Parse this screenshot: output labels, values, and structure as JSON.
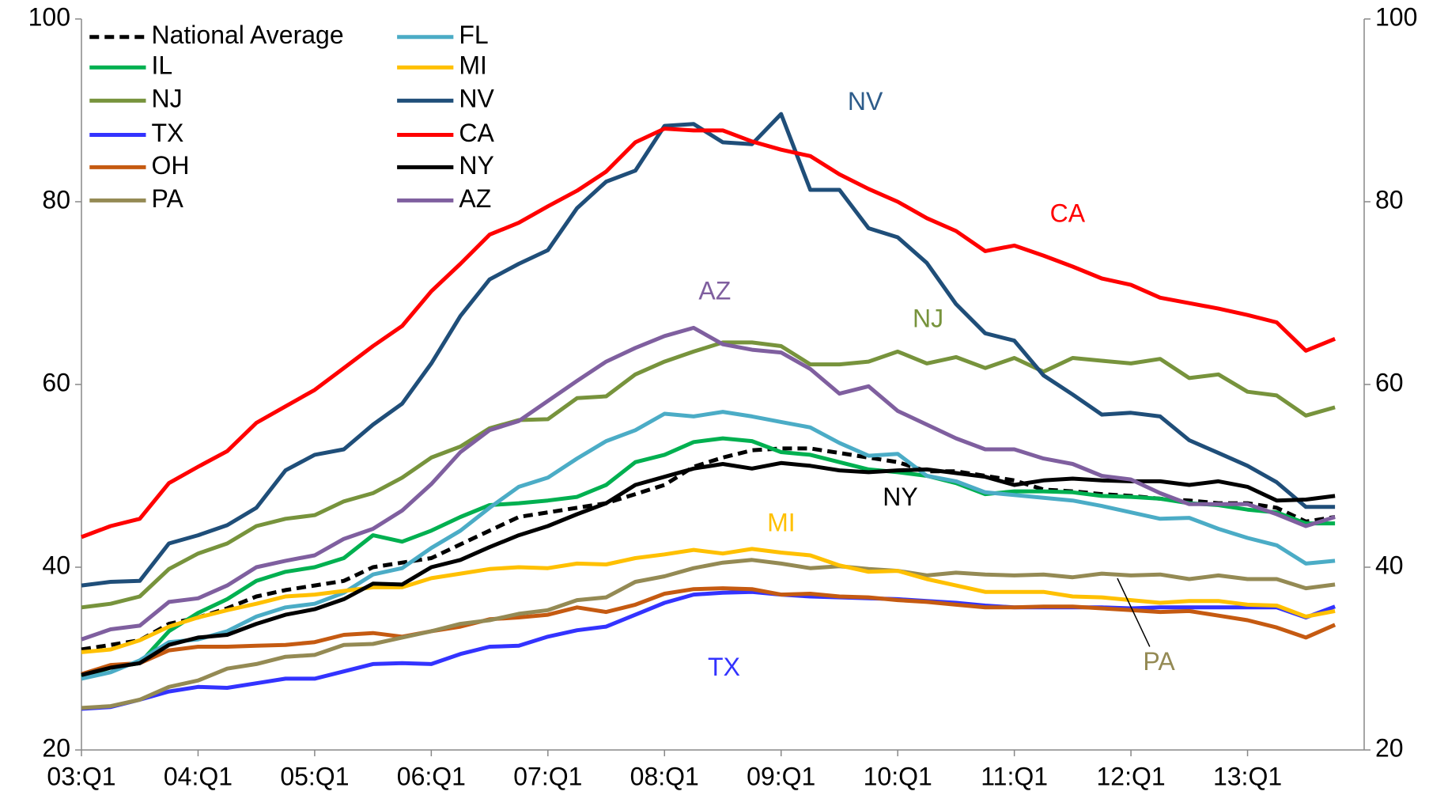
{
  "chart_data": {
    "type": "line",
    "categories": [
      "03:Q1",
      null,
      null,
      null,
      "04:Q1",
      null,
      null,
      null,
      "05:Q1",
      null,
      null,
      null,
      "06:Q1",
      null,
      null,
      null,
      "07:Q1",
      null,
      null,
      null,
      "08:Q1",
      null,
      null,
      null,
      "09:Q1",
      null,
      null,
      null,
      "10:Q1",
      null,
      null,
      null,
      "11:Q1",
      null,
      null,
      null,
      "12:Q1",
      null,
      null,
      null,
      "13:Q1",
      null,
      null,
      null
    ],
    "ylim": [
      20,
      100
    ],
    "yticks": [
      20,
      40,
      60,
      80,
      100
    ],
    "y2lim": [
      20,
      100
    ],
    "y2ticks": [
      20,
      40,
      60,
      80,
      100
    ],
    "legend": "upper left",
    "series": [
      {
        "name": "National Average",
        "color": "#000000",
        "style": "dashed",
        "values": [
          31,
          31.5,
          32,
          33.8,
          34.5,
          35.5,
          36.8,
          37.5,
          38,
          38.5,
          40,
          40.5,
          41,
          42.5,
          44,
          45.5,
          46,
          46.5,
          47,
          48,
          49,
          51,
          52,
          52.8,
          53,
          53,
          52.5,
          52,
          51.5,
          50.5,
          50.5,
          50,
          49.5,
          48.5,
          48.3,
          48,
          47.8,
          47.5,
          47.3,
          47,
          47,
          46.5,
          45,
          45.5
        ]
      },
      {
        "name": "IL",
        "color": "#00b050",
        "values": [
          28,
          29,
          29.5,
          33,
          35,
          36.5,
          38.5,
          39.5,
          40,
          41,
          43.5,
          42.8,
          44,
          45.5,
          46.8,
          47,
          47.3,
          47.7,
          49,
          51.5,
          52.3,
          53.7,
          54.1,
          53.8,
          52.6,
          52.3,
          51.5,
          50.7,
          50.4,
          50,
          49.2,
          48,
          48.3,
          48.3,
          48.2,
          47.8,
          47.7,
          47.5,
          47,
          46.8,
          46.3,
          46,
          44.8,
          44.8
        ]
      },
      {
        "name": "NJ",
        "color": "#77933c",
        "values": [
          35.6,
          36,
          36.8,
          39.8,
          41.5,
          42.6,
          44.5,
          45.3,
          45.7,
          47.2,
          48.1,
          49.8,
          52,
          53.2,
          55.2,
          56.1,
          56.2,
          58.5,
          58.7,
          61.1,
          62.5,
          63.6,
          64.6,
          64.6,
          64.2,
          62.2,
          62.2,
          62.5,
          63.6,
          62.3,
          63,
          61.8,
          62.9,
          61.4,
          62.9,
          62.6,
          62.3,
          62.8,
          60.7,
          61.1,
          59.2,
          58.8,
          56.6,
          57.5
        ]
      },
      {
        "name": "TX",
        "color": "#3333ff",
        "values": [
          24.5,
          24.7,
          25.5,
          26.4,
          26.9,
          26.8,
          27.3,
          27.8,
          27.8,
          28.6,
          29.4,
          29.5,
          29.4,
          30.5,
          31.3,
          31.4,
          32.4,
          33.1,
          33.5,
          34.8,
          36.1,
          37,
          37.2,
          37.3,
          37,
          36.8,
          36.7,
          36.6,
          36.5,
          36.3,
          36.1,
          35.8,
          35.6,
          35.6,
          35.6,
          35.6,
          35.5,
          35.6,
          35.6,
          35.6,
          35.6,
          35.6,
          34.5,
          35.7
        ]
      },
      {
        "name": "OH",
        "color": "#c55a11",
        "values": [
          28.3,
          29.3,
          29.5,
          30.9,
          31.3,
          31.3,
          31.4,
          31.5,
          31.8,
          32.6,
          32.8,
          32.4,
          33,
          33.5,
          34.3,
          34.5,
          34.8,
          35.6,
          35.1,
          35.9,
          37.1,
          37.6,
          37.7,
          37.6,
          37,
          37.1,
          36.8,
          36.7,
          36.4,
          36.2,
          35.9,
          35.6,
          35.6,
          35.7,
          35.7,
          35.5,
          35.3,
          35.1,
          35.2,
          34.7,
          34.2,
          33.4,
          32.3,
          33.7
        ]
      },
      {
        "name": "PA",
        "color": "#948a54",
        "values": [
          24.6,
          24.8,
          25.5,
          26.9,
          27.6,
          28.9,
          29.4,
          30.2,
          30.4,
          31.5,
          31.6,
          32.3,
          33,
          33.8,
          34.2,
          34.9,
          35.3,
          36.4,
          36.7,
          38.4,
          39,
          39.9,
          40.5,
          40.8,
          40.4,
          39.9,
          40.1,
          39.8,
          39.6,
          39.1,
          39.4,
          39.2,
          39.1,
          39.2,
          38.9,
          39.3,
          39.1,
          39.2,
          38.7,
          39.1,
          38.7,
          38.7,
          37.7,
          38.1
        ]
      },
      {
        "name": "FL",
        "color": "#4bacc6",
        "values": [
          27.8,
          28.5,
          29.8,
          31.8,
          32.1,
          33,
          34.6,
          35.6,
          36,
          37.2,
          39.2,
          39.9,
          42.1,
          44,
          46.5,
          48.8,
          49.8,
          51.9,
          53.8,
          55,
          56.8,
          56.5,
          57,
          56.5,
          55.9,
          55.3,
          53.6,
          52.2,
          52.4,
          50,
          49.4,
          48.2,
          47.9,
          47.6,
          47.3,
          46.7,
          46,
          45.3,
          45.4,
          44.2,
          43.2,
          42.4,
          40.4,
          40.7
        ]
      },
      {
        "name": "MI",
        "color": "#ffc000",
        "values": [
          30.7,
          31,
          32,
          33.5,
          34.5,
          35.3,
          36,
          36.8,
          37,
          37.4,
          37.8,
          37.8,
          38.8,
          39.3,
          39.8,
          40,
          39.9,
          40.4,
          40.3,
          41,
          41.4,
          41.9,
          41.5,
          42,
          41.6,
          41.3,
          40.2,
          39.5,
          39.6,
          38.7,
          38,
          37.3,
          37.3,
          37.3,
          36.8,
          36.7,
          36.4,
          36.1,
          36.3,
          36.3,
          35.9,
          35.8,
          34.6,
          35.2
        ]
      },
      {
        "name": "NV",
        "color": "#1f4e79",
        "values": [
          38,
          38.4,
          38.5,
          42.6,
          43.5,
          44.6,
          46.5,
          50.6,
          52.3,
          52.9,
          55.6,
          57.9,
          62.3,
          67.5,
          71.5,
          73.2,
          74.7,
          79.3,
          82.2,
          83.4,
          88.3,
          88.5,
          86.5,
          86.3,
          89.6,
          81.3,
          81.3,
          77.1,
          76.1,
          73.3,
          68.8,
          65.6,
          64.8,
          61,
          58.9,
          56.7,
          56.9,
          56.5,
          53.9,
          52.5,
          51.1,
          49.3,
          46.6,
          46.6
        ]
      },
      {
        "name": "CA",
        "color": "#ff0000",
        "values": [
          43.3,
          44.5,
          45.3,
          49.2,
          51,
          52.7,
          55.8,
          57.6,
          59.4,
          61.8,
          64.2,
          66.4,
          70.2,
          73.2,
          76.4,
          77.7,
          79.5,
          81.2,
          83.3,
          86.5,
          88,
          87.8,
          87.8,
          86.6,
          85.7,
          85,
          83,
          81.4,
          80,
          78.2,
          76.8,
          74.6,
          75.2,
          74.1,
          72.9,
          71.6,
          70.9,
          69.5,
          68.9,
          68.3,
          67.6,
          66.8,
          63.7,
          65
        ]
      },
      {
        "name": "NY",
        "color": "#000000",
        "values": [
          28.2,
          29,
          29.5,
          31.5,
          32.3,
          32.6,
          33.8,
          34.8,
          35.4,
          36.5,
          38.2,
          38.1,
          40,
          40.8,
          42.2,
          43.5,
          44.5,
          45.8,
          47,
          49,
          49.9,
          50.8,
          51.3,
          50.8,
          51.4,
          51.1,
          50.6,
          50.4,
          50.6,
          50.7,
          50.3,
          49.9,
          49,
          49.5,
          49.7,
          49.5,
          49.4,
          49.4,
          49,
          49.4,
          48.8,
          47.3,
          47.4,
          47.8
        ]
      },
      {
        "name": "AZ",
        "color": "#7f5f9f",
        "values": [
          32.1,
          33.2,
          33.6,
          36.2,
          36.6,
          38,
          40,
          40.7,
          41.3,
          43.1,
          44.2,
          46.2,
          49.1,
          52.6,
          55,
          56,
          58.2,
          60.4,
          62.5,
          64,
          65.3,
          66.2,
          64.4,
          63.8,
          63.5,
          61.7,
          59,
          59.8,
          57.1,
          55.6,
          54.1,
          52.9,
          52.9,
          51.9,
          51.3,
          50,
          49.6,
          48.1,
          46.9,
          46.9,
          46.9,
          45.8,
          44.5,
          45.5
        ]
      }
    ],
    "annotations": [
      {
        "text": "NV",
        "color": "#2e5c8a"
      },
      {
        "text": "CA",
        "color": "#ff0000"
      },
      {
        "text": "AZ",
        "color": "#7f5f9f"
      },
      {
        "text": "NJ",
        "color": "#77933c"
      },
      {
        "text": "NY",
        "color": "#000000"
      },
      {
        "text": "MI",
        "color": "#ffc000"
      },
      {
        "text": "PA",
        "color": "#948a54"
      },
      {
        "text": "TX",
        "color": "#3333ff"
      }
    ]
  }
}
